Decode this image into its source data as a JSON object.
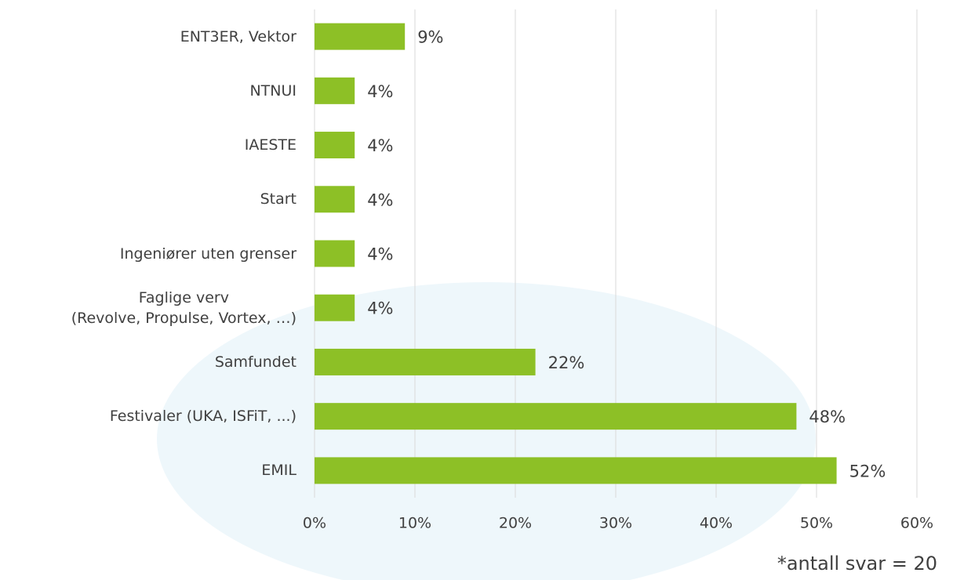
{
  "chart_data": {
    "type": "bar",
    "orientation": "horizontal",
    "categories": [
      "ENT3ER, Vektor",
      "NTNUI",
      "IAESTE",
      "Start",
      "Ingeniører uten grenser",
      "Faglige verv\n(Revolve, Propulse, Vortex, …)",
      "Samfundet",
      "Festivaler (UKA, ISFiT, ...)",
      "EMIL"
    ],
    "values": [
      9,
      4,
      4,
      4,
      4,
      4,
      22,
      48,
      52
    ],
    "value_labels": [
      "9%",
      "4%",
      "4%",
      "4%",
      "4%",
      "4%",
      "22%",
      "48%",
      "52%"
    ],
    "color": "#8dc026",
    "xlim": [
      0,
      60
    ],
    "xticks": [
      {
        "value": 0,
        "label": "0%"
      },
      {
        "value": 10,
        "label": "10%"
      },
      {
        "value": 20,
        "label": "20%"
      },
      {
        "value": 30,
        "label": "30%"
      },
      {
        "value": 40,
        "label": "40%"
      },
      {
        "value": 50,
        "label": "50%"
      },
      {
        "value": 60,
        "label": "60%"
      }
    ],
    "grid": true,
    "annotation": "*antall svar = 20"
  }
}
